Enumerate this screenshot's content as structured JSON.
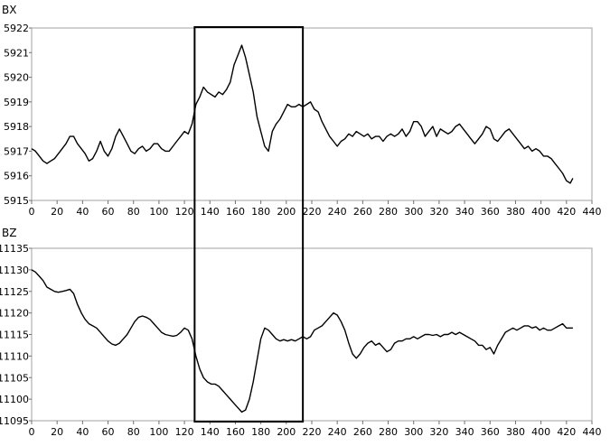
{
  "chart_data": [
    {
      "type": "line",
      "title": "BX",
      "xlim": [
        0,
        440
      ],
      "ylim": [
        5915,
        5922
      ],
      "xticks": [
        0,
        20,
        40,
        60,
        80,
        100,
        120,
        140,
        160,
        180,
        200,
        220,
        240,
        260,
        280,
        300,
        320,
        340,
        360,
        380,
        400,
        420,
        440
      ],
      "yticks": [
        5915,
        5916,
        5917,
        5918,
        5919,
        5920,
        5921,
        5922
      ],
      "grid": false,
      "highlight_range": [
        128,
        213
      ],
      "series": [
        {
          "x": [
            0,
            3,
            6,
            9,
            12,
            15,
            18,
            21,
            24,
            27,
            30,
            33,
            36,
            39,
            42,
            45,
            48,
            51,
            54,
            57,
            60,
            63,
            66,
            69,
            72,
            75,
            78,
            81,
            84,
            87,
            90,
            93,
            96,
            99,
            102,
            105,
            108,
            111,
            114,
            117,
            120,
            123,
            126,
            129,
            132,
            135,
            138,
            141,
            144,
            147,
            150,
            153,
            156,
            159,
            162,
            165,
            168,
            171,
            174,
            177,
            180,
            183,
            186,
            189,
            192,
            195,
            198,
            201,
            204,
            207,
            210,
            213,
            216,
            219,
            222,
            225,
            228,
            231,
            234,
            237,
            240,
            243,
            246,
            249,
            252,
            255,
            258,
            261,
            264,
            267,
            270,
            273,
            276,
            279,
            282,
            285,
            288,
            291,
            294,
            297,
            300,
            303,
            306,
            309,
            312,
            315,
            318,
            321,
            324,
            327,
            330,
            333,
            336,
            339,
            342,
            345,
            348,
            351,
            354,
            357,
            360,
            363,
            366,
            369,
            372,
            375,
            378,
            381,
            384,
            387,
            390,
            393,
            396,
            399,
            402,
            405,
            408,
            411,
            414,
            417,
            420,
            423,
            425
          ],
          "y": [
            5917.1,
            5917.0,
            5916.8,
            5916.6,
            5916.5,
            5916.6,
            5916.7,
            5916.9,
            5917.1,
            5917.3,
            5917.6,
            5917.6,
            5917.3,
            5917.1,
            5916.9,
            5916.6,
            5916.7,
            5917.0,
            5917.4,
            5917.0,
            5916.8,
            5917.1,
            5917.6,
            5917.9,
            5917.6,
            5917.3,
            5917.0,
            5916.9,
            5917.1,
            5917.2,
            5917.0,
            5917.1,
            5917.3,
            5917.3,
            5917.1,
            5917.0,
            5917.0,
            5917.2,
            5917.4,
            5917.6,
            5917.8,
            5917.7,
            5918.1,
            5918.9,
            5919.2,
            5919.6,
            5919.4,
            5919.3,
            5919.2,
            5919.4,
            5919.3,
            5919.5,
            5919.8,
            5920.5,
            5920.9,
            5921.3,
            5920.8,
            5920.1,
            5919.4,
            5918.4,
            5917.8,
            5917.2,
            5917.0,
            5917.8,
            5918.1,
            5918.3,
            5918.6,
            5918.9,
            5918.8,
            5918.8,
            5918.9,
            5918.8,
            5918.9,
            5919.0,
            5918.7,
            5918.6,
            5918.2,
            5917.9,
            5917.6,
            5917.4,
            5917.2,
            5917.4,
            5917.5,
            5917.7,
            5917.6,
            5917.8,
            5917.7,
            5917.6,
            5917.7,
            5917.5,
            5917.6,
            5917.6,
            5917.4,
            5917.6,
            5917.7,
            5917.6,
            5917.7,
            5917.9,
            5917.6,
            5917.8,
            5918.2,
            5918.2,
            5918.0,
            5917.6,
            5917.8,
            5918.0,
            5917.6,
            5917.9,
            5917.8,
            5917.7,
            5917.8,
            5918.0,
            5918.1,
            5917.9,
            5917.7,
            5917.5,
            5917.3,
            5917.5,
            5917.7,
            5918.0,
            5917.9,
            5917.5,
            5917.4,
            5917.6,
            5917.8,
            5917.9,
            5917.7,
            5917.5,
            5917.3,
            5917.1,
            5917.2,
            5917.0,
            5917.1,
            5917.0,
            5916.8,
            5916.8,
            5916.7,
            5916.5,
            5916.3,
            5916.1,
            5915.8,
            5915.7,
            5915.9
          ]
        }
      ]
    },
    {
      "type": "line",
      "title": "BZ",
      "xlim": [
        0,
        440
      ],
      "ylim": [
        11095,
        11135
      ],
      "xticks": [
        0,
        20,
        40,
        60,
        80,
        100,
        120,
        140,
        160,
        180,
        200,
        220,
        240,
        260,
        280,
        300,
        320,
        340,
        360,
        380,
        400,
        420,
        440
      ],
      "yticks": [
        11095,
        11100,
        11105,
        11110,
        11115,
        11120,
        11125,
        11130,
        11135
      ],
      "grid": false,
      "highlight_range": [
        128,
        213
      ],
      "series": [
        {
          "x": [
            0,
            3,
            6,
            9,
            12,
            15,
            18,
            21,
            24,
            27,
            30,
            33,
            36,
            39,
            42,
            45,
            48,
            51,
            54,
            57,
            60,
            63,
            66,
            69,
            72,
            75,
            78,
            81,
            84,
            87,
            90,
            93,
            96,
            99,
            102,
            105,
            108,
            111,
            114,
            117,
            120,
            123,
            126,
            129,
            132,
            135,
            138,
            141,
            144,
            147,
            150,
            153,
            156,
            159,
            162,
            165,
            168,
            171,
            174,
            177,
            180,
            183,
            186,
            189,
            192,
            195,
            198,
            201,
            204,
            207,
            210,
            213,
            216,
            219,
            222,
            225,
            228,
            231,
            234,
            237,
            240,
            243,
            246,
            249,
            252,
            255,
            258,
            261,
            264,
            267,
            270,
            273,
            276,
            279,
            282,
            285,
            288,
            291,
            294,
            297,
            300,
            303,
            306,
            309,
            312,
            315,
            318,
            321,
            324,
            327,
            330,
            333,
            336,
            339,
            342,
            345,
            348,
            351,
            354,
            357,
            360,
            363,
            366,
            369,
            372,
            375,
            378,
            381,
            384,
            387,
            390,
            393,
            396,
            399,
            402,
            405,
            408,
            411,
            414,
            417,
            420,
            423,
            425
          ],
          "y": [
            11130.0,
            11129.5,
            11128.5,
            11127.5,
            11126.0,
            11125.5,
            11125.0,
            11124.8,
            11125.0,
            11125.2,
            11125.5,
            11124.5,
            11122.0,
            11120.0,
            11118.5,
            11117.5,
            11117.0,
            11116.5,
            11115.5,
            11114.5,
            11113.5,
            11112.8,
            11112.5,
            11113.0,
            11114.0,
            11115.0,
            11116.5,
            11118.0,
            11119.0,
            11119.3,
            11119.0,
            11118.5,
            11117.5,
            11116.5,
            11115.5,
            11115.0,
            11114.8,
            11114.6,
            11114.8,
            11115.5,
            11116.5,
            11116.0,
            11114.0,
            11110.0,
            11107.0,
            11105.0,
            11104.0,
            11103.5,
            11103.5,
            11103.0,
            11102.0,
            11101.0,
            11100.0,
            11099.0,
            11098.0,
            11097.0,
            11097.5,
            11100.0,
            11104.0,
            11109.0,
            11114.0,
            11116.5,
            11116.0,
            11115.0,
            11114.0,
            11113.5,
            11113.8,
            11113.5,
            11113.8,
            11113.5,
            11114.0,
            11114.5,
            11114.0,
            11114.5,
            11116.0,
            11116.5,
            11117.0,
            11118.0,
            11119.0,
            11120.0,
            11119.5,
            11118.0,
            11116.0,
            11113.0,
            11110.5,
            11109.5,
            11110.5,
            11112.0,
            11113.0,
            11113.5,
            11112.5,
            11113.0,
            11112.0,
            11111.0,
            11111.5,
            11113.0,
            11113.5,
            11113.5,
            11114.0,
            11114.0,
            11114.5,
            11114.0,
            11114.5,
            11115.0,
            11115.0,
            11114.8,
            11115.0,
            11114.5,
            11115.0,
            11115.0,
            11115.5,
            11115.0,
            11115.5,
            11115.0,
            11114.5,
            11114.0,
            11113.5,
            11112.5,
            11112.5,
            11111.5,
            11112.0,
            11110.5,
            11112.5,
            11114.0,
            11115.5,
            11116.0,
            11116.5,
            11116.0,
            11116.5,
            11117.0,
            11117.0,
            11116.5,
            11116.8,
            11116.0,
            11116.5,
            11116.0,
            11116.0,
            11116.5,
            11117.0,
            11117.5,
            11116.5,
            11116.5,
            11116.5
          ]
        }
      ]
    }
  ]
}
